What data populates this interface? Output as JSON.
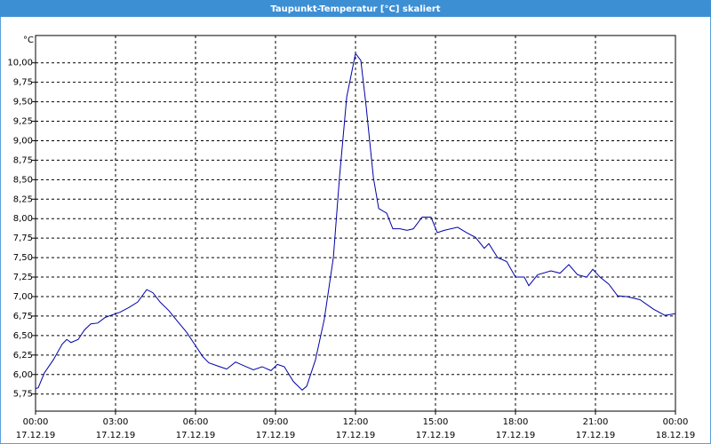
{
  "chart_data": {
    "type": "line",
    "title": "Taupunkt-Temperatur [°C] skaliert",
    "ylabel": "°C",
    "xlim": [
      0,
      24
    ],
    "xticks": [
      {
        "value": 0,
        "label": "00:00",
        "date": "17.12.19"
      },
      {
        "value": 3,
        "label": "03:00",
        "date": "17.12.19"
      },
      {
        "value": 6,
        "label": "06:00",
        "date": "17.12.19"
      },
      {
        "value": 9,
        "label": "09:00",
        "date": "17.12.19"
      },
      {
        "value": 12,
        "label": "12:00",
        "date": "17.12.19"
      },
      {
        "value": 15,
        "label": "15:00",
        "date": "17.12.19"
      },
      {
        "value": 18,
        "label": "18:00",
        "date": "17.12.19"
      },
      {
        "value": 21,
        "label": "21:00",
        "date": "17.12.19"
      },
      {
        "value": 24,
        "label": "00:00",
        "date": "18.12.19"
      }
    ],
    "ylim": [
      5.53,
      10.35
    ],
    "yticks": [
      {
        "value": 5.75,
        "label": "5,75"
      },
      {
        "value": 6,
        "label": "6,00"
      },
      {
        "value": 6.25,
        "label": "6,25"
      },
      {
        "value": 6.5,
        "label": "6,50"
      },
      {
        "value": 6.75,
        "label": "6,75"
      },
      {
        "value": 7,
        "label": "7,00"
      },
      {
        "value": 7.25,
        "label": "7,25"
      },
      {
        "value": 7.5,
        "label": "7,50"
      },
      {
        "value": 7.75,
        "label": "7,75"
      },
      {
        "value": 8,
        "label": "8,00"
      },
      {
        "value": 8.25,
        "label": "8,25"
      },
      {
        "value": 8.5,
        "label": "8,50"
      },
      {
        "value": 8.75,
        "label": "8,75"
      },
      {
        "value": 9,
        "label": "9,00"
      },
      {
        "value": 9.25,
        "label": "9,25"
      },
      {
        "value": 9.5,
        "label": "9,50"
      },
      {
        "value": 9.75,
        "label": "9,75"
      },
      {
        "value": 10,
        "label": "10,00"
      }
    ],
    "grid": true,
    "x": [
      0,
      0.1,
      0.33,
      0.67,
      1,
      1.17,
      1.33,
      1.6,
      1.83,
      2.07,
      2.33,
      2.6,
      2.83,
      3.17,
      3.5,
      3.83,
      4.17,
      4.4,
      4.67,
      5,
      5.33,
      5.67,
      6,
      6.27,
      6.5,
      6.83,
      7.17,
      7.5,
      7.83,
      8.17,
      8.5,
      8.83,
      9.07,
      9.33,
      9.67,
      10,
      10.17,
      10.5,
      10.83,
      11.17,
      11.4,
      11.67,
      11.87,
      12,
      12.2,
      12.4,
      12.67,
      12.87,
      13.17,
      13.4,
      13.67,
      13.93,
      14.17,
      14.5,
      14.83,
      15.07,
      15.33,
      15.83,
      16.17,
      16.5,
      16.83,
      17,
      17.33,
      17.67,
      18,
      18.33,
      18.5,
      18.83,
      19.33,
      19.67,
      20,
      20.33,
      20.67,
      20.9,
      21.17,
      21.5,
      21.83,
      22.17,
      22.67,
      23.17,
      23.6,
      24
    ],
    "series": [
      {
        "color": "#0000a8",
        "values": [
          5.82,
          5.83,
          6.02,
          6.19,
          6.39,
          6.45,
          6.41,
          6.45,
          6.57,
          6.65,
          6.66,
          6.73,
          6.76,
          6.8,
          6.86,
          6.93,
          7.09,
          7.05,
          6.93,
          6.82,
          6.68,
          6.54,
          6.37,
          6.23,
          6.15,
          6.11,
          6.07,
          6.16,
          6.11,
          6.06,
          6.1,
          6.05,
          6.13,
          6.1,
          5.91,
          5.8,
          5.85,
          6.19,
          6.71,
          7.5,
          8.53,
          9.56,
          9.9,
          10.12,
          10.03,
          9.44,
          8.53,
          8.13,
          8.07,
          7.87,
          7.87,
          7.85,
          7.87,
          8.02,
          8.02,
          7.82,
          7.85,
          7.89,
          7.82,
          7.76,
          7.62,
          7.68,
          7.5,
          7.45,
          7.25,
          7.25,
          7.14,
          7.28,
          7.33,
          7.3,
          7.41,
          7.28,
          7.25,
          7.35,
          7.25,
          7.16,
          7.01,
          7,
          6.96,
          6.84,
          6.76,
          6.78
        ]
      }
    ]
  }
}
